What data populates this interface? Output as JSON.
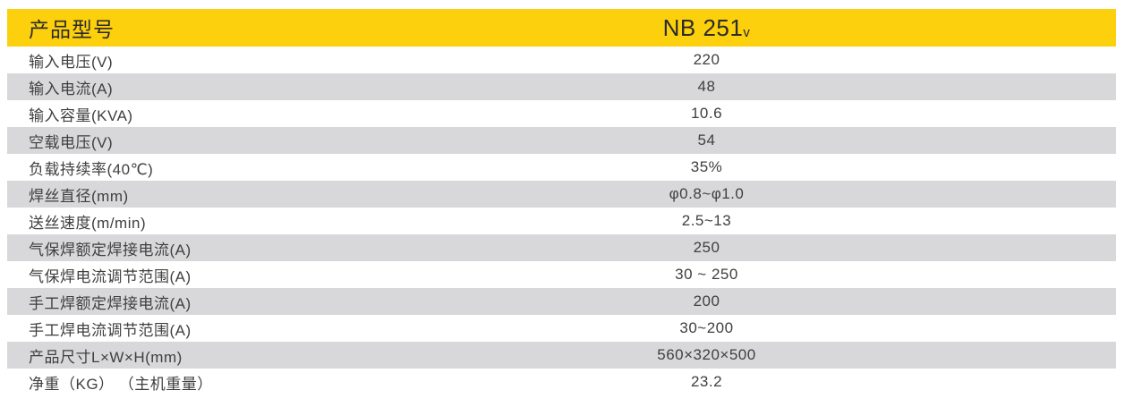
{
  "table": {
    "header": {
      "label": "产品型号",
      "model": "NB 251",
      "model_suffix": "v"
    },
    "rows": [
      {
        "label": "输入电压(V)",
        "value": "220"
      },
      {
        "label": "输入电流(A)",
        "value": "48"
      },
      {
        "label": "输入容量(KVA)",
        "value": "10.6"
      },
      {
        "label": "空载电压(V)",
        "value": "54"
      },
      {
        "label": "负载持续率(40℃)",
        "value": "35%"
      },
      {
        "label": "焊丝直径(mm)",
        "value": "φ0.8~φ1.0"
      },
      {
        "label": "送丝速度(m/min)",
        "value": "2.5~13"
      },
      {
        "label": "气保焊额定焊接电流(A)",
        "value": "250"
      },
      {
        "label": "气保焊电流调节范围(A)",
        "value": "30 ~ 250"
      },
      {
        "label": "手工焊额定焊接电流(A)",
        "value": "200"
      },
      {
        "label": "手工焊电流调节范围(A)",
        "value": "30~200"
      },
      {
        "label": "产品尺寸L×W×H(mm)",
        "value": "560×320×500"
      },
      {
        "label": "净重（KG） （主机重量）",
        "value": "23.2"
      }
    ]
  },
  "colors": {
    "header_bg": "#fcd00d",
    "header_text": "#2b2b2b",
    "row_alt_bg": "#d8d8da",
    "row_bg": "#ffffff",
    "text": "#3f3f3f"
  }
}
